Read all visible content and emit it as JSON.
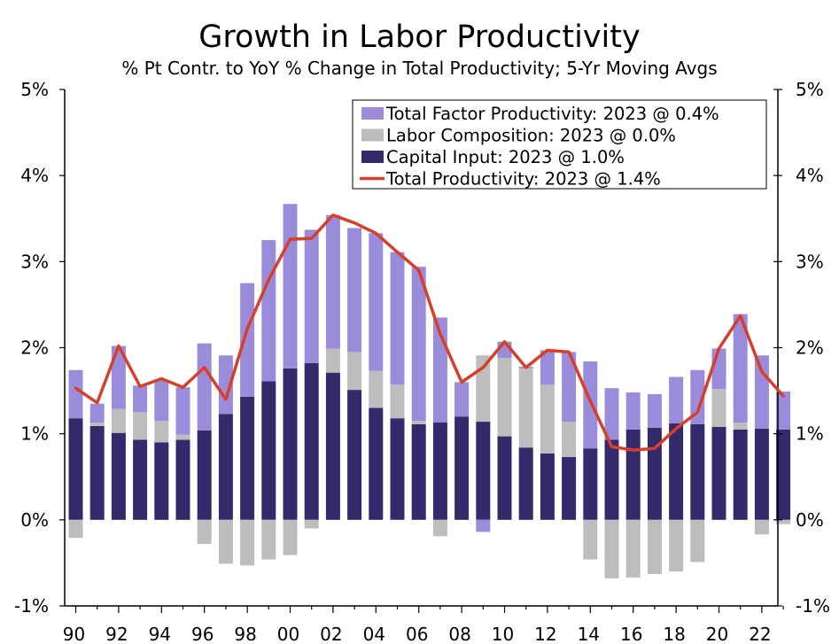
{
  "chart_data": {
    "type": "bar",
    "stacked": true,
    "title": "Growth in Labor Productivity",
    "subtitle": "% Pt Contr. to YoY % Change in Total Productivity; 5-Yr Moving Avgs",
    "ylim": [
      -1,
      5
    ],
    "y_ticks": [
      "-1%",
      "0%",
      "1%",
      "2%",
      "3%",
      "4%",
      "5%"
    ],
    "x_tick_labels": [
      "90",
      "92",
      "94",
      "96",
      "98",
      "00",
      "02",
      "04",
      "06",
      "08",
      "10",
      "12",
      "14",
      "16",
      "18",
      "20",
      "22"
    ],
    "grid": false,
    "legend_position": "top-right",
    "x": [
      1990,
      1991,
      1992,
      1993,
      1994,
      1995,
      1996,
      1997,
      1998,
      1999,
      2000,
      2001,
      2002,
      2003,
      2004,
      2005,
      2006,
      2007,
      2008,
      2009,
      2010,
      2011,
      2012,
      2013,
      2014,
      2015,
      2016,
      2017,
      2018,
      2019,
      2020,
      2021,
      2022,
      2023
    ],
    "series": [
      {
        "name": "Total Factor Productivity: 2023 @ 0.4%",
        "kind": "bar",
        "color": "#9b8bdb",
        "values": [
          0.56,
          0.22,
          0.73,
          0.31,
          0.47,
          0.55,
          1.01,
          0.68,
          1.32,
          1.64,
          1.91,
          1.55,
          1.55,
          1.44,
          1.6,
          1.54,
          1.79,
          1.22,
          0.4,
          -0.14,
          0.19,
          0.02,
          0.4,
          0.81,
          1.01,
          0.6,
          0.43,
          0.39,
          0.54,
          0.63,
          0.47,
          1.26,
          0.85,
          0.44
        ]
      },
      {
        "name": "Labor Composition: 2023 @ 0.0%",
        "kind": "bar",
        "color": "#bdbdbd",
        "values": [
          -0.21,
          0.04,
          0.28,
          0.32,
          0.25,
          0.06,
          -0.28,
          -0.51,
          -0.53,
          -0.46,
          -0.41,
          -0.1,
          0.28,
          0.44,
          0.43,
          0.39,
          0.04,
          -0.19,
          0.0,
          0.77,
          0.91,
          0.92,
          0.8,
          0.41,
          -0.46,
          -0.68,
          -0.67,
          -0.63,
          -0.6,
          -0.49,
          0.44,
          0.08,
          -0.17,
          -0.05
        ]
      },
      {
        "name": "Capital Input: 2023 @ 1.0%",
        "kind": "bar",
        "color": "#342a6b",
        "values": [
          1.18,
          1.09,
          1.01,
          0.93,
          0.9,
          0.93,
          1.04,
          1.23,
          1.43,
          1.61,
          1.76,
          1.82,
          1.71,
          1.51,
          1.3,
          1.18,
          1.11,
          1.13,
          1.2,
          1.14,
          0.97,
          0.84,
          0.77,
          0.73,
          0.83,
          0.93,
          1.05,
          1.07,
          1.12,
          1.11,
          1.08,
          1.05,
          1.06,
          1.05
        ]
      },
      {
        "name": "Total Productivity: 2023 @ 1.4%",
        "kind": "line",
        "color": "#d6402a",
        "values": [
          1.53,
          1.36,
          2.02,
          1.55,
          1.64,
          1.54,
          1.77,
          1.4,
          2.22,
          2.79,
          3.26,
          3.27,
          3.54,
          3.45,
          3.33,
          3.11,
          2.9,
          2.16,
          1.6,
          1.77,
          2.07,
          1.77,
          1.97,
          1.95,
          1.38,
          0.85,
          0.81,
          0.83,
          1.06,
          1.25,
          1.99,
          2.37,
          1.72,
          1.44
        ]
      }
    ]
  }
}
